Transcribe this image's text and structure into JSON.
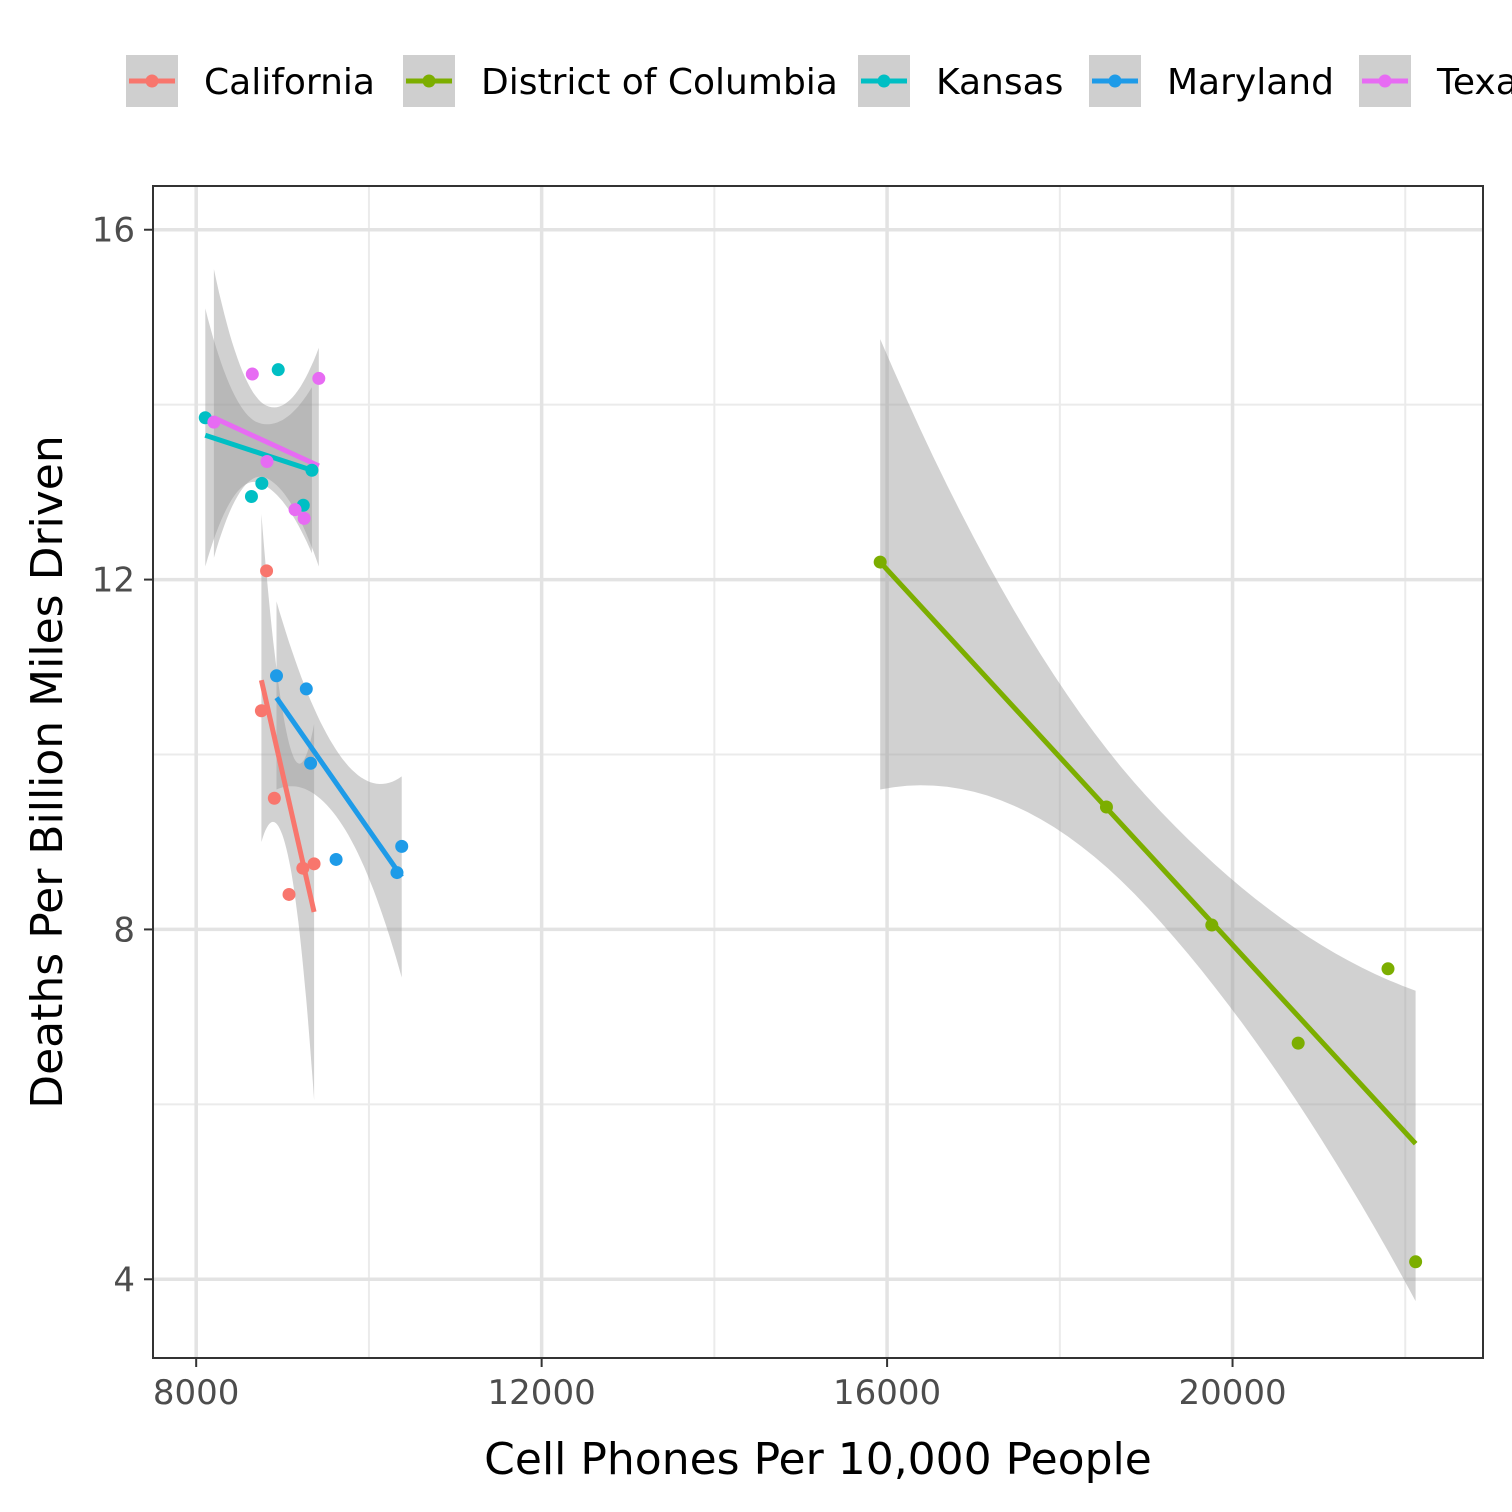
{
  "chart_data": {
    "type": "scatter",
    "title": "",
    "xlabel": "Cell Phones Per 10,000 People",
    "ylabel": "Deaths Per Billion Miles Driven",
    "xlim": [
      7500,
      22900
    ],
    "ylim": [
      3.1,
      16.5
    ],
    "x_ticks": [
      8000,
      12000,
      16000,
      20000
    ],
    "x_tick_labels": [
      "8000",
      "12000",
      "16000",
      "20000"
    ],
    "y_ticks": [
      4,
      8,
      12,
      16
    ],
    "y_tick_labels": [
      "4",
      "8",
      "12",
      "16"
    ],
    "grid": true,
    "legend_position": "top",
    "series": [
      {
        "name": "California",
        "color": "#F8766D",
        "points": [
          [
            8755,
            10.5
          ],
          [
            8815,
            12.1
          ],
          [
            8905,
            9.5
          ],
          [
            9075,
            8.4
          ],
          [
            9235,
            8.7
          ],
          [
            9365,
            8.75
          ]
        ],
        "trend": {
          "x": [
            8755,
            9365
          ],
          "y": [
            10.85,
            8.2
          ]
        },
        "band_lower": [
          9.0,
          6.05
        ],
        "band_upper": [
          12.75,
          10.35
        ]
      },
      {
        "name": "District of Columbia",
        "color": "#7CAE00",
        "points": [
          [
            15920,
            12.2
          ],
          [
            18540,
            9.4
          ],
          [
            19760,
            8.05
          ],
          [
            20760,
            6.7
          ],
          [
            21800,
            7.55
          ],
          [
            22120,
            4.2
          ]
        ],
        "trend": {
          "x": [
            15920,
            22120
          ],
          "y": [
            12.2,
            5.55
          ]
        },
        "band_lower": [
          9.6,
          3.75
        ],
        "band_upper": [
          14.75,
          7.3
        ]
      },
      {
        "name": "Kansas",
        "color": "#00BFC4",
        "points": [
          [
            8105,
            13.85
          ],
          [
            8640,
            12.95
          ],
          [
            8760,
            13.1
          ],
          [
            8950,
            14.4
          ],
          [
            9240,
            12.85
          ],
          [
            9340,
            13.25
          ]
        ],
        "trend": {
          "x": [
            8105,
            9340
          ],
          "y": [
            13.65,
            13.25
          ]
        },
        "band_lower": [
          12.15,
          12.3
        ],
        "band_upper": [
          15.1,
          14.2
        ]
      },
      {
        "name": "Maryland",
        "color": "#1E9BE8",
        "points": [
          [
            8930,
            10.9
          ],
          [
            9275,
            10.75
          ],
          [
            9325,
            9.9
          ],
          [
            9620,
            8.8
          ],
          [
            10325,
            8.65
          ],
          [
            10380,
            8.95
          ]
        ],
        "trend": {
          "x": [
            8930,
            10380
          ],
          "y": [
            10.65,
            8.6
          ]
        },
        "band_lower": [
          9.6,
          7.45
        ],
        "band_upper": [
          11.75,
          9.75
        ]
      },
      {
        "name": "Texas",
        "color": "#E76BF3",
        "points": [
          [
            8205,
            13.8
          ],
          [
            8650,
            14.35
          ],
          [
            8820,
            13.35
          ],
          [
            9145,
            12.8
          ],
          [
            9250,
            12.7
          ],
          [
            9420,
            14.3
          ]
        ],
        "trend": {
          "x": [
            8205,
            9420
          ],
          "y": [
            13.85,
            13.3
          ]
        },
        "band_lower": [
          12.25,
          12.15
        ],
        "band_upper": [
          15.55,
          14.65
        ]
      }
    ]
  }
}
